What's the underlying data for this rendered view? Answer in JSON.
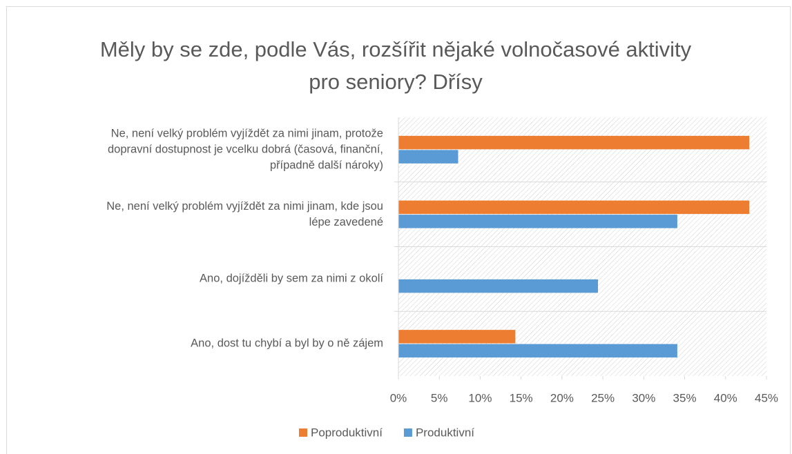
{
  "chart_data": {
    "type": "hbar",
    "title": "Měly by se zde, podle Vás, rozšířit nějaké volnočasové aktivity pro seniory? Dřísy",
    "categories": [
      "Ne, není velký problém vyjíždět za nimi jinam, protože dopravní dostupnost je vcelku dobrá (časová, finanční, případně další nároky)",
      "Ne, není velký problém vyjíždět za nimi jinam, kde jsou lépe zavedené",
      "Ano, dojížděli by sem za nimi z okolí",
      "Ano, dost tu chybí a byl by o ně zájem"
    ],
    "series": [
      {
        "name": "Poproduktivní",
        "color": "#ed7d31",
        "values": [
          42.9,
          42.9,
          0,
          14.3
        ]
      },
      {
        "name": "Produktivní",
        "color": "#5b9bd5",
        "values": [
          7.3,
          34.1,
          24.4,
          34.1
        ]
      }
    ],
    "xlim": [
      0,
      45
    ],
    "xticks": [
      {
        "value": 0,
        "label": "0%"
      },
      {
        "value": 5,
        "label": "5%"
      },
      {
        "value": 10,
        "label": "10%"
      },
      {
        "value": 15,
        "label": "15%"
      },
      {
        "value": 20,
        "label": "20%"
      },
      {
        "value": 25,
        "label": "25%"
      },
      {
        "value": 30,
        "label": "30%"
      },
      {
        "value": 35,
        "label": "35%"
      },
      {
        "value": 40,
        "label": "40%"
      },
      {
        "value": 45,
        "label": "45%"
      }
    ],
    "legend": "bottom"
  }
}
